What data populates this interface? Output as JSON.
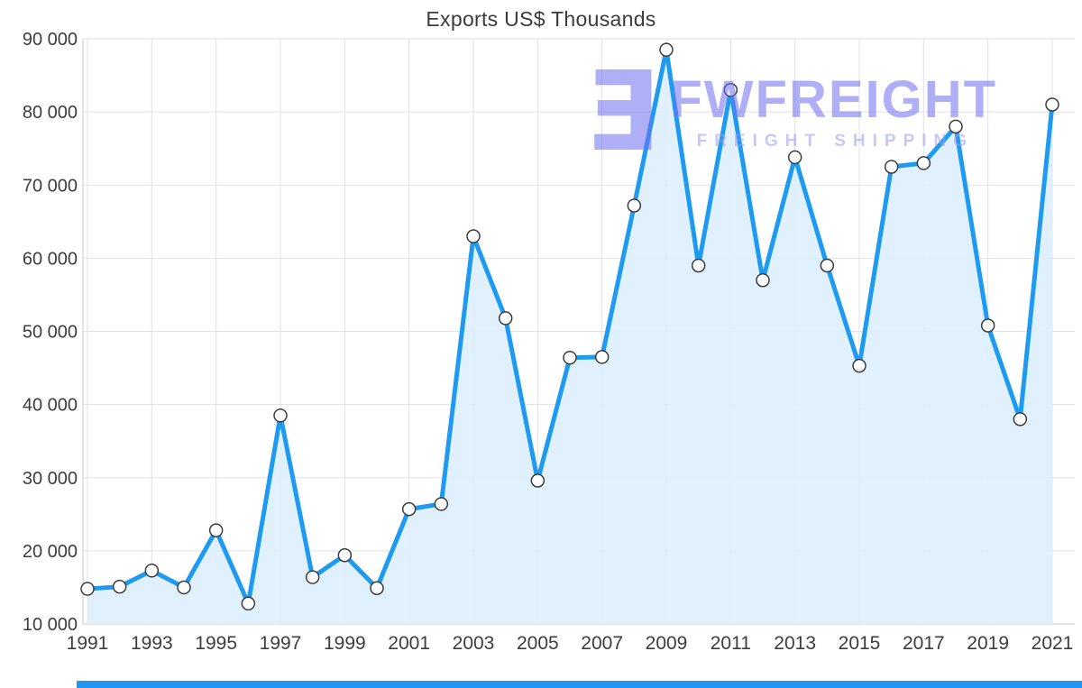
{
  "title": "Exports US$ Thousands",
  "watermark": {
    "logo_glyph": "Ǝ",
    "brand": "FWFREIGHT",
    "tagline": "FREIGHT SHIPPING",
    "brand_color": "#6f6ff2",
    "tagline_color": "#9a9af6"
  },
  "colors": {
    "line": "#1e9bf0",
    "area_fill": "#ddeefc",
    "marker_fill": "#ffffff",
    "marker_stroke": "#3c3c3c",
    "grid": "#e1e1e1",
    "plot_border": "#c9c9c9",
    "axis_text": "#3d3d3d",
    "bottom_bar": "#2196f3"
  },
  "chart_data": {
    "type": "area",
    "title": "Exports US$ Thousands",
    "x": [
      1991,
      1992,
      1993,
      1994,
      1995,
      1996,
      1997,
      1998,
      1999,
      2000,
      2001,
      2002,
      2003,
      2004,
      2005,
      2006,
      2007,
      2008,
      2009,
      2010,
      2011,
      2012,
      2013,
      2014,
      2015,
      2016,
      2017,
      2018,
      2019,
      2020,
      2021
    ],
    "values": [
      14800,
      15100,
      17300,
      15000,
      22800,
      12800,
      38500,
      16400,
      19400,
      14900,
      25700,
      26400,
      63000,
      51800,
      29600,
      46400,
      46500,
      67200,
      88500,
      59000,
      83000,
      57000,
      73800,
      59000,
      45300,
      72500,
      73000,
      78000,
      50800,
      38000,
      81000
    ],
    "ylim": [
      10000,
      90000
    ],
    "ytick_step": 10000,
    "xtick_step": 2,
    "grid": true,
    "legend": "none",
    "marker": "circle-open",
    "y_tick_format": "space-thousands"
  }
}
